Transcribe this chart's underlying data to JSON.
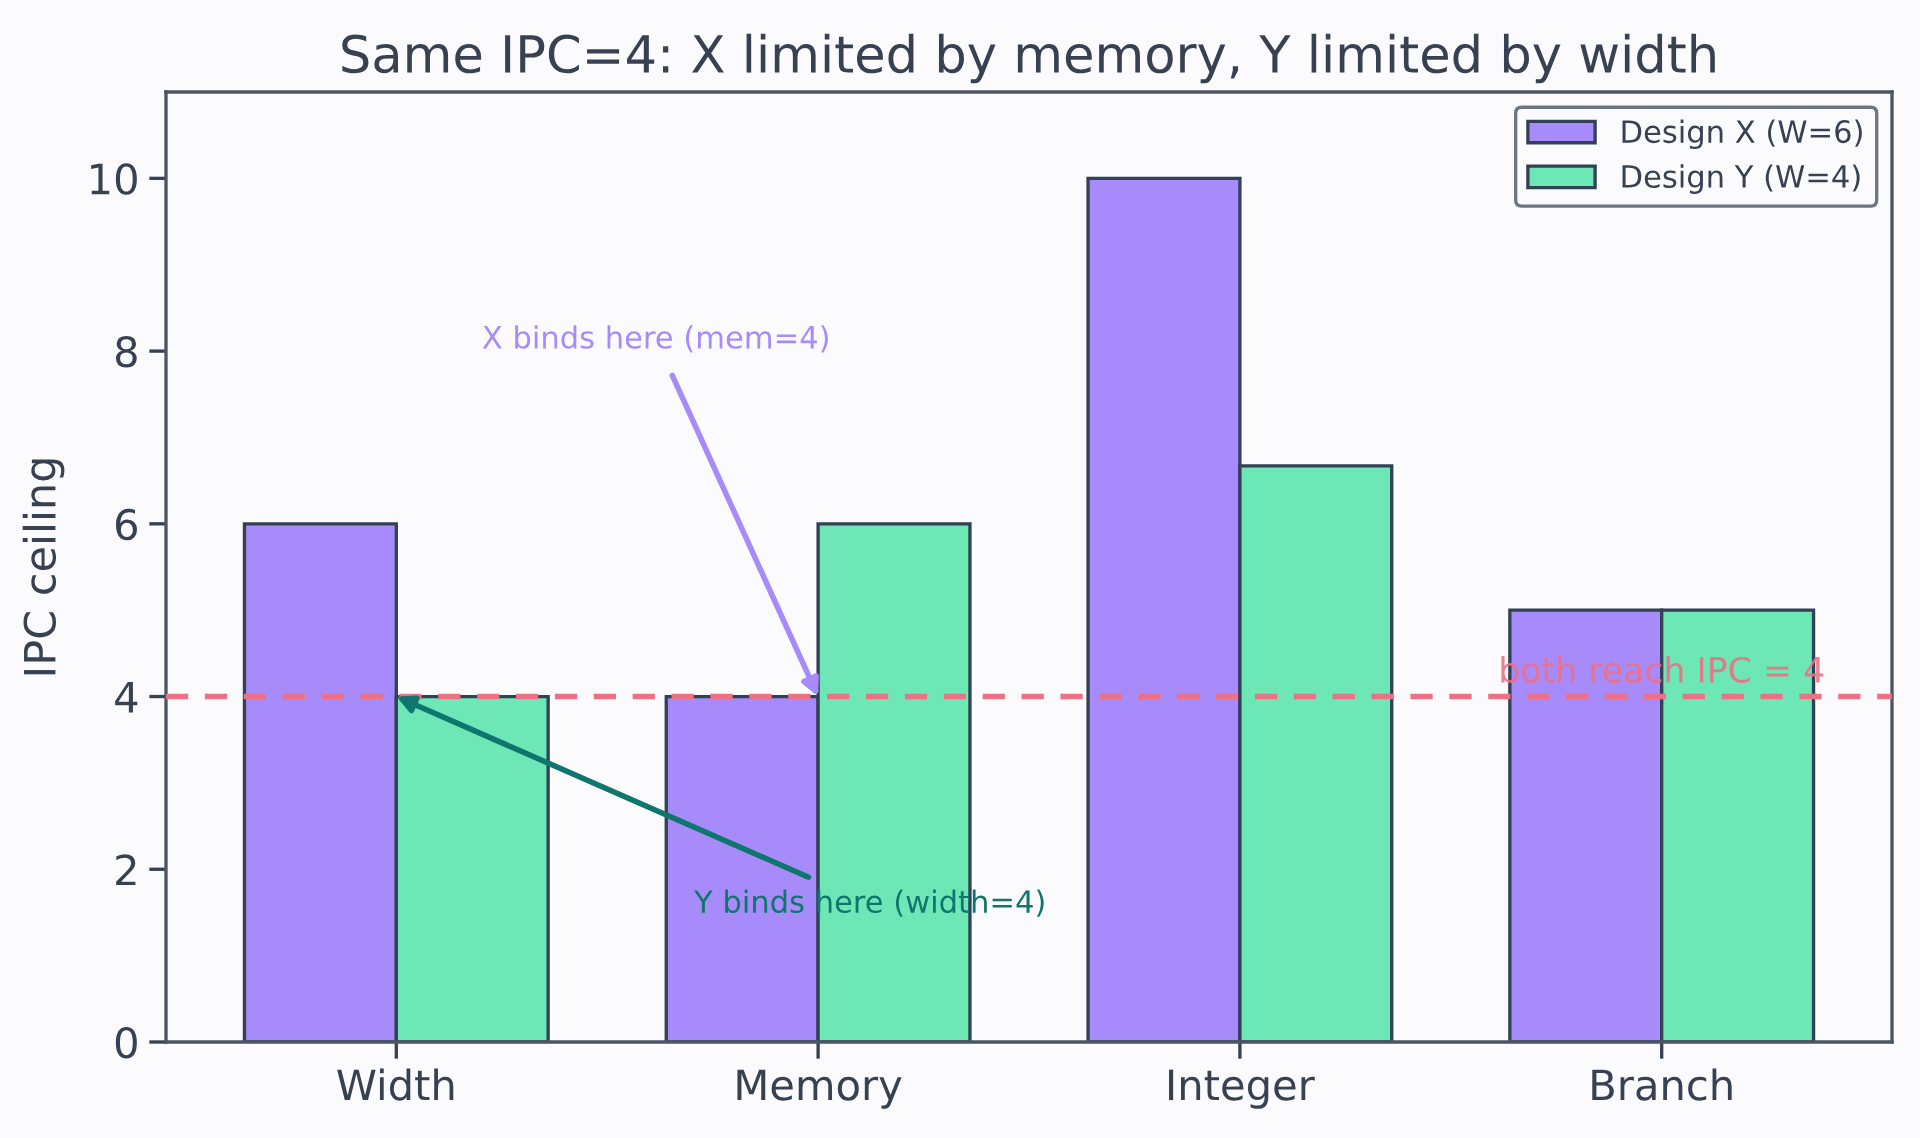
{
  "chart_data": {
    "type": "bar",
    "title": "Same IPC=4: X limited by memory, Y limited by width",
    "ylabel": "IPC ceiling",
    "categories": [
      "Width",
      "Memory",
      "Integer",
      "Branch"
    ],
    "series": [
      {
        "name": "Design X (W=6)",
        "color": "#a78bfa",
        "values": [
          6,
          4,
          10,
          5
        ]
      },
      {
        "name": "Design Y (W=4)",
        "color": "#6ee7b7",
        "values": [
          4,
          6,
          6.67,
          5
        ]
      }
    ],
    "ylim": [
      0,
      11
    ],
    "yticks": [
      0,
      2,
      4,
      6,
      8,
      10
    ],
    "ref_lines": [
      {
        "axis": "y",
        "value": 4,
        "label": "both reach IPC = 4",
        "color": "#ef7085",
        "line_style": "dashed"
      }
    ],
    "annotations": [
      {
        "text": "X binds here (mem=4)",
        "x": "Memory",
        "y": 4
      },
      {
        "text": "Y binds here (width=4)",
        "x": "Width",
        "y": 4
      }
    ],
    "legend": "top right",
    "grid": false
  }
}
